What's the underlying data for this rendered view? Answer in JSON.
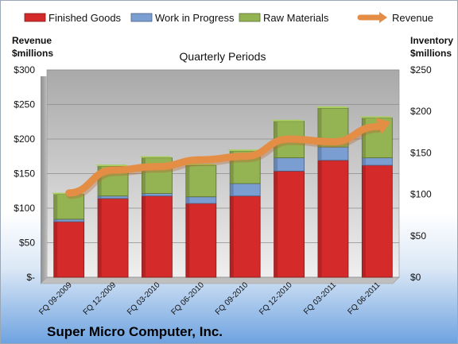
{
  "chart_data": {
    "type": "bar",
    "title": "Quarterly Periods",
    "footer": "Super Micro Computer, Inc.",
    "categories": [
      "FQ 09-2009",
      "FQ 12-2009",
      "FQ 03-2010",
      "FQ 06-2010",
      "FQ 09-2010",
      "FQ 12-2010",
      "FQ 03-2011",
      "FQ 06-2011"
    ],
    "stacked": true,
    "series": [
      {
        "name": "Finished Goods",
        "axis": "right",
        "color": "#d42a2a",
        "values": [
          67,
          95,
          98,
          89,
          98,
          128,
          141,
          135
        ]
      },
      {
        "name": "Work in Progress",
        "axis": "right",
        "color": "#7a9ed2",
        "values": [
          3,
          3,
          3,
          8,
          15,
          16,
          16,
          9
        ]
      },
      {
        "name": "Raw Materials",
        "axis": "right",
        "color": "#94b353",
        "values": [
          30,
          36,
          43,
          38,
          39,
          44,
          47,
          48
        ]
      },
      {
        "name": "Revenue",
        "axis": "left",
        "type": "line",
        "color": "#e38d45",
        "values": [
          122,
          155,
          160,
          170,
          175,
          200,
          196,
          218
        ]
      }
    ],
    "left_axis": {
      "label_line1": "Revenue",
      "label_line2": "$millions",
      "ylim": [
        0,
        300
      ],
      "ticks": [
        "$-",
        "$50",
        "$100",
        "$150",
        "$200",
        "$250",
        "$300"
      ]
    },
    "right_axis": {
      "label_line1": "Inventory",
      "label_line2": "$millions",
      "ylim": [
        0,
        250
      ],
      "ticks": [
        "$0",
        "$50",
        "$100",
        "$150",
        "$200",
        "$250"
      ]
    },
    "legend_position": "top",
    "grid": true
  }
}
